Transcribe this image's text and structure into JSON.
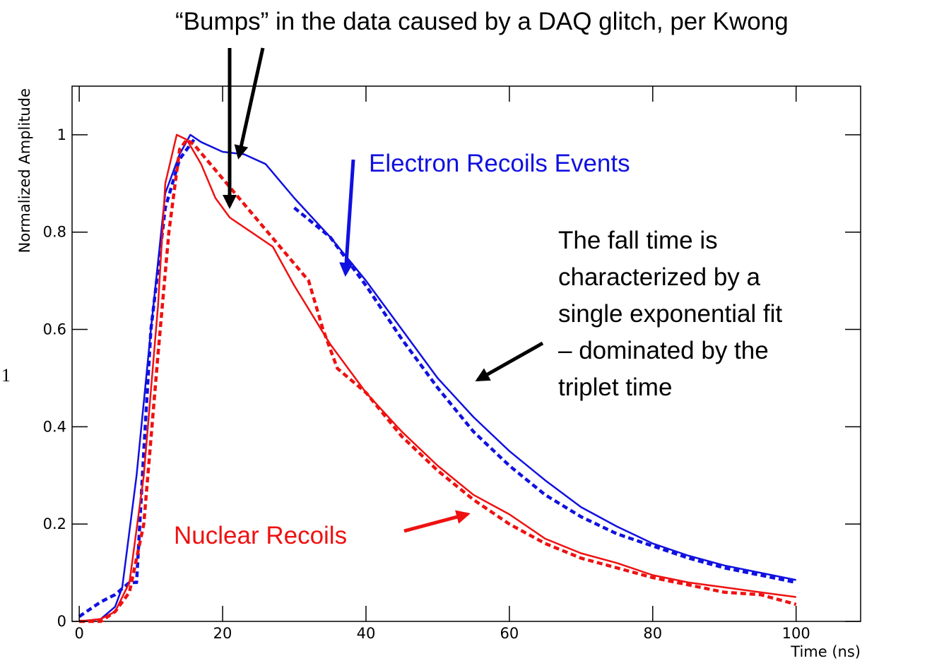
{
  "chart_data": {
    "type": "line",
    "xlabel": "Time (ns)",
    "ylabel": "Normalized Amplitude",
    "xlim": [
      -1,
      109
    ],
    "ylim": [
      0,
      1.1
    ],
    "xticks": [
      0,
      20,
      40,
      60,
      80,
      100
    ],
    "yticks": [
      0,
      0.2,
      0.4,
      0.6,
      0.8,
      1
    ],
    "series": [
      {
        "color": "#1010e0",
        "style": "solid",
        "x": [
          0,
          3,
          5,
          6,
          8,
          10,
          12,
          14,
          15.5,
          17,
          20,
          23,
          26,
          30,
          35,
          40,
          45,
          50,
          55,
          60,
          65,
          70,
          75,
          80,
          85,
          90,
          95,
          100
        ],
        "values": [
          0,
          0.005,
          0.03,
          0.07,
          0.3,
          0.6,
          0.88,
          0.96,
          1.0,
          0.985,
          0.965,
          0.96,
          0.94,
          0.87,
          0.79,
          0.7,
          0.6,
          0.5,
          0.42,
          0.35,
          0.29,
          0.235,
          0.195,
          0.16,
          0.135,
          0.115,
          0.1,
          0.085
        ]
      },
      {
        "color": "#1010e0",
        "style": "dashed",
        "x": [
          0,
          3,
          5,
          7,
          8,
          9,
          10,
          12,
          14,
          16,
          29,
          30,
          35,
          40,
          45,
          50,
          55,
          60,
          65,
          70,
          75,
          80,
          85,
          90,
          95,
          100
        ],
        "values": [
          0.01,
          0.04,
          0.055,
          0.08,
          0.08,
          0.35,
          0.6,
          0.85,
          0.95,
          0.99,
          null,
          0.85,
          0.79,
          0.69,
          0.58,
          0.48,
          0.39,
          0.32,
          0.26,
          0.215,
          0.18,
          0.155,
          0.13,
          0.11,
          0.095,
          0.08
        ]
      },
      {
        "color": "#ee1111",
        "style": "solid",
        "x": [
          0,
          3,
          5,
          7,
          9,
          11,
          12,
          13.6,
          15,
          17,
          19,
          21,
          24,
          27,
          30,
          35,
          40,
          45,
          50,
          55,
          60,
          65,
          70,
          75,
          80,
          85,
          90,
          95,
          100
        ],
        "values": [
          0,
          0.005,
          0.02,
          0.08,
          0.3,
          0.65,
          0.9,
          1.0,
          0.99,
          0.94,
          0.87,
          0.83,
          0.8,
          0.77,
          0.69,
          0.57,
          0.47,
          0.39,
          0.32,
          0.26,
          0.22,
          0.17,
          0.14,
          0.12,
          0.095,
          0.08,
          0.07,
          0.06,
          0.05
        ]
      },
      {
        "color": "#ee1111",
        "style": "dashed",
        "x": [
          0,
          3,
          5,
          7,
          9,
          11,
          12.5,
          14,
          15,
          16,
          32,
          34,
          36,
          40,
          45,
          50,
          55,
          60,
          65,
          70,
          75,
          80,
          85,
          90,
          95,
          100
        ],
        "values": [
          0,
          0,
          0.02,
          0.06,
          0.2,
          0.55,
          0.8,
          0.97,
          0.99,
          0.98,
          0.7,
          0.6,
          0.52,
          0.47,
          0.38,
          0.31,
          0.25,
          0.2,
          0.16,
          0.13,
          0.11,
          0.09,
          0.075,
          0.06,
          0.055,
          0.035
        ]
      }
    ],
    "annotations": [
      {
        "lines": [
          "“Bumps” in the data caused by a DAQ glitch, per Kwong"
        ],
        "color": "#000000"
      },
      {
        "lines": [
          "Electron Recoils Events"
        ],
        "color": "#1010e0"
      },
      {
        "lines": [
          "The fall time is",
          "characterized by a",
          "single exponential fit",
          "– dominated by the",
          "triplet time"
        ],
        "color": "#000000"
      },
      {
        "lines": [
          "Nuclear Recoils"
        ],
        "color": "#ee1111"
      },
      {
        "lines": [
          "1"
        ],
        "color": "#000000"
      }
    ]
  }
}
